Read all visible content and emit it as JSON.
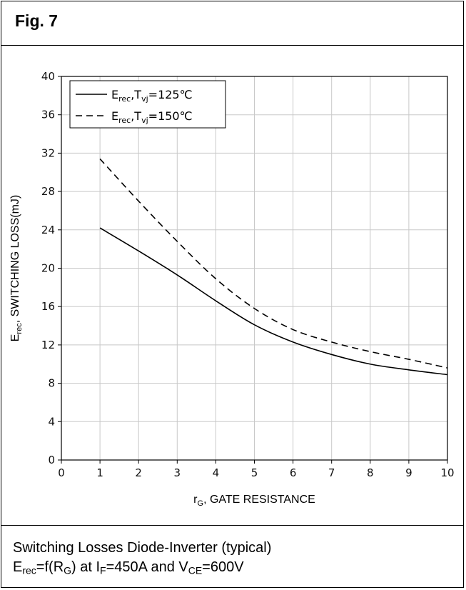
{
  "figure": {
    "title": "Fig. 7",
    "caption_line1": "Switching Losses Diode-Inverter (typical)",
    "caption_line2": {
      "e": "E",
      "e_sub": "rec",
      "mid1": "=f(R",
      "r_sub": "G",
      "mid2": ") at I",
      "i_sub": "F",
      "mid3": "=450A and V",
      "v_sub": "CE",
      "end": "=600V"
    }
  },
  "chart_data": {
    "type": "line",
    "xlabel": {
      "main": "r",
      "sub": "G",
      "rest": ", GATE RESISTANCE"
    },
    "ylabel": {
      "main": "E",
      "sub": "rec",
      "rest": ", SWITCHING LOSS(mJ)"
    },
    "xlim": [
      0,
      10
    ],
    "ylim": [
      0,
      40
    ],
    "xticks": [
      0,
      1,
      2,
      3,
      4,
      5,
      6,
      7,
      8,
      9,
      10
    ],
    "yticks": [
      0,
      4,
      8,
      12,
      16,
      20,
      24,
      28,
      32,
      36,
      40
    ],
    "grid": true,
    "legend_position": "top-left",
    "series": [
      {
        "legend": {
          "a": "E",
          "a_sub": "rec",
          "b": ",T",
          "b_sub": "vj",
          "c": "=125℃"
        },
        "style": "solid",
        "color": "#000000",
        "x": [
          1,
          2,
          3,
          4,
          5,
          6,
          7,
          8,
          9,
          10
        ],
        "y": [
          24.2,
          21.8,
          19.3,
          16.6,
          14.1,
          12.3,
          11.0,
          10.0,
          9.4,
          8.9
        ]
      },
      {
        "legend": {
          "a": "E",
          "a_sub": "rec",
          "b": ",T",
          "b_sub": "vj",
          "c": "=150℃"
        },
        "style": "dashed",
        "color": "#000000",
        "x": [
          1,
          2,
          3,
          4,
          5,
          6,
          7,
          8,
          9,
          10
        ],
        "y": [
          31.4,
          27.0,
          22.8,
          18.9,
          15.8,
          13.6,
          12.3,
          11.3,
          10.5,
          9.6
        ]
      }
    ]
  }
}
